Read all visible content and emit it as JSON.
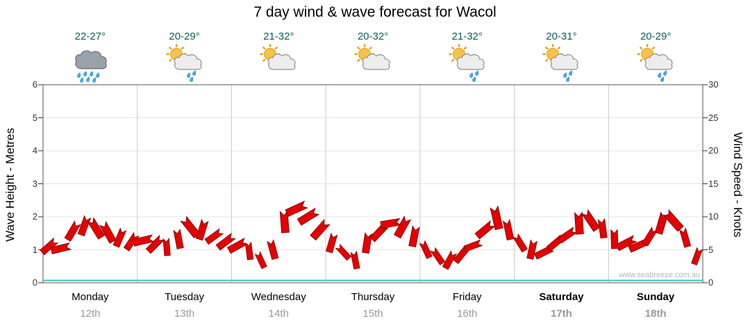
{
  "title": "7 day wind & wave forecast for Wacol",
  "watermark": "www.seabreeze.com.au",
  "days": [
    {
      "name": "Monday",
      "date": "12th",
      "temp": "22-27°",
      "icon": "rain",
      "bold": false
    },
    {
      "name": "Tuesday",
      "date": "13th",
      "temp": "20-29°",
      "icon": "sun-shower",
      "bold": false
    },
    {
      "name": "Wednesday",
      "date": "14th",
      "temp": "21-32°",
      "icon": "partly-cloudy",
      "bold": false
    },
    {
      "name": "Thursday",
      "date": "15th",
      "temp": "20-32°",
      "icon": "partly-cloudy",
      "bold": false
    },
    {
      "name": "Friday",
      "date": "16th",
      "temp": "21-32°",
      "icon": "sun-shower",
      "bold": false
    },
    {
      "name": "Saturday",
      "date": "17th",
      "temp": "20-31°",
      "icon": "sun-shower",
      "bold": true
    },
    {
      "name": "Sunday",
      "date": "18th",
      "temp": "20-29°",
      "icon": "sun-shower",
      "bold": true
    }
  ],
  "chart_data": {
    "type": "line",
    "title": "7 day wind & wave forecast for Wacol",
    "x_categories": [
      "Monday 12th",
      "Tuesday 13th",
      "Wednesday 14th",
      "Thursday 15th",
      "Friday 16th",
      "Saturday 17th",
      "Sunday 18th"
    ],
    "points_per_day": 8,
    "left_axis": {
      "label": "Wave Height - Metres",
      "range": [
        0,
        6
      ],
      "ticks": [
        0,
        1,
        2,
        3,
        4,
        5,
        6
      ]
    },
    "right_axis": {
      "label": "Wind Speed - Knots",
      "range": [
        0,
        30
      ],
      "ticks": [
        0,
        5,
        10,
        15,
        20,
        25,
        30
      ]
    },
    "grid": true,
    "legend": "none",
    "series": [
      {
        "name": "Wind Speed",
        "unit": "knots",
        "axis": "right",
        "style": "red-wind-barbs",
        "values": [
          5.5,
          5.2,
          7.8,
          8.6,
          8.2,
          7.6,
          6.8,
          6.2,
          6.4,
          5.8,
          5.4,
          6.6,
          8.4,
          8.0,
          7.0,
          6.2,
          5.6,
          4.8,
          3.4,
          5.0,
          9.2,
          11.2,
          10.0,
          8.0,
          6.0,
          4.6,
          3.4,
          6.0,
          7.6,
          9.0,
          8.4,
          7.0,
          5.0,
          4.0,
          3.4,
          4.2,
          5.6,
          8.0,
          9.8,
          8.0,
          6.0,
          5.0,
          4.6,
          6.0,
          7.2,
          9.0,
          9.4,
          8.2,
          6.6,
          6.0,
          5.6,
          7.0,
          9.0,
          9.4,
          6.8,
          4.0
        ]
      },
      {
        "name": "Wave Height",
        "unit": "metres",
        "axis": "left",
        "style": "flat-cyan-line",
        "constant_value": 0.07
      }
    ]
  },
  "colors": {
    "barb_fill": "#e60000",
    "barb_stroke": "#8f0000",
    "wave_line": "#2fc7c7",
    "grid_vertical": "#c9c9c9",
    "grid_horizontal": "#e4e4e4",
    "axis": "#555555",
    "tick": "#333333",
    "day_name_text": "#000000",
    "date_text": "#999999",
    "temp_text": "#0b5d55",
    "watermark_text": "#b5b5b5",
    "sun": "#f6c24a",
    "sun_ray": "#dfa117",
    "cloud_light": "#ededed",
    "cloud_light_edge": "#8f8f8f",
    "cloud_dark": "#99a1ab",
    "cloud_dark_edge": "#6e757e",
    "raindrop": "#4aaede",
    "raindrop_edge": "#1d86b8"
  }
}
